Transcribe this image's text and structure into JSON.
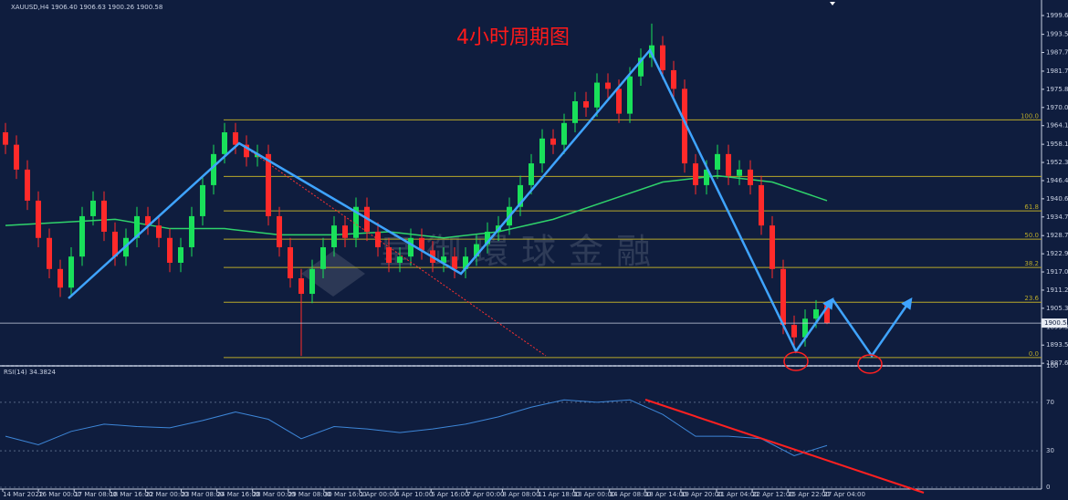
{
  "chart_data": {
    "type": "candlestick",
    "header": "XAUUSD,H4  1906.40 1906.63 1900.26 1900.58",
    "title": "4小时周期图",
    "watermark": "皇御環球金融",
    "up_color": "#19e05a",
    "down_color": "#ff2a2a",
    "open": [
      1962,
      1958,
      1950,
      1940,
      1928,
      1918,
      1912,
      1922,
      1935,
      1940,
      1930,
      1922,
      1928,
      1935,
      1932,
      1928,
      1920,
      1925,
      1935,
      1945,
      1955,
      1962,
      1958,
      1954,
      1955,
      1935,
      1925,
      1915,
      1910,
      1918,
      1925,
      1932,
      1928,
      1938,
      1930,
      1925,
      1920,
      1922,
      1928,
      1924,
      1920,
      1922,
      1918,
      1922,
      1926,
      1930,
      1932,
      1938,
      1945,
      1952,
      1960,
      1958,
      1965,
      1972,
      1970,
      1978,
      1976,
      1968,
      1980,
      1986,
      1990,
      1982,
      1976,
      1952,
      1945,
      1950,
      1955,
      1948,
      1950,
      1945,
      1932,
      1918,
      1900,
      1896,
      1902,
      1906.4
    ],
    "high": [
      1965,
      1961,
      1953,
      1943,
      1931,
      1921,
      1925,
      1938,
      1943,
      1943,
      1933,
      1931,
      1938,
      1938,
      1935,
      1931,
      1928,
      1938,
      1948,
      1958,
      1965,
      1965,
      1961,
      1958,
      1958,
      1938,
      1928,
      1918,
      1921,
      1928,
      1935,
      1935,
      1941,
      1941,
      1933,
      1928,
      1925,
      1931,
      1931,
      1927,
      1925,
      1925,
      1925,
      1929,
      1933,
      1935,
      1941,
      1948,
      1955,
      1963,
      1963,
      1968,
      1975,
      1975,
      1981,
      1981,
      1979,
      1983,
      1989,
      1997,
      1993,
      1985,
      1979,
      1955,
      1953,
      1958,
      1958,
      1953,
      1953,
      1948,
      1935,
      1921,
      1903,
      1905,
      1908,
      1906.63
    ],
    "low": [
      1955,
      1947,
      1937,
      1925,
      1915,
      1909,
      1909,
      1919,
      1932,
      1927,
      1919,
      1919,
      1925,
      1929,
      1925,
      1917,
      1917,
      1922,
      1932,
      1942,
      1952,
      1955,
      1951,
      1951,
      1932,
      1922,
      1912,
      1890,
      1907,
      1915,
      1922,
      1925,
      1925,
      1927,
      1922,
      1917,
      1917,
      1919,
      1921,
      1917,
      1917,
      1915,
      1915,
      1919,
      1923,
      1927,
      1929,
      1935,
      1942,
      1949,
      1955,
      1955,
      1962,
      1967,
      1967,
      1973,
      1965,
      1965,
      1977,
      1983,
      1979,
      1973,
      1949,
      1942,
      1942,
      1947,
      1945,
      1945,
      1942,
      1929,
      1915,
      1897,
      1892,
      1893,
      1899,
      1900.26
    ],
    "close": [
      1958,
      1950,
      1940,
      1928,
      1918,
      1912,
      1922,
      1935,
      1940,
      1930,
      1922,
      1928,
      1935,
      1932,
      1928,
      1920,
      1925,
      1935,
      1945,
      1955,
      1962,
      1958,
      1954,
      1955,
      1935,
      1925,
      1915,
      1910,
      1918,
      1925,
      1932,
      1928,
      1938,
      1930,
      1925,
      1920,
      1922,
      1928,
      1924,
      1920,
      1922,
      1918,
      1922,
      1926,
      1930,
      1932,
      1938,
      1945,
      1952,
      1960,
      1958,
      1965,
      1972,
      1970,
      1978,
      1976,
      1968,
      1980,
      1986,
      1990,
      1982,
      1976,
      1952,
      1945,
      1950,
      1955,
      1948,
      1950,
      1945,
      1932,
      1918,
      1900,
      1896,
      1902,
      1905,
      1900.58
    ],
    "ylim": [
      1887.1,
      2004.6
    ],
    "yticks": [
      {
        "value": 1999.6,
        "label": "1999.60"
      },
      {
        "value": 1993.55,
        "label": "1993.55"
      },
      {
        "value": 1987.7,
        "label": "1987.70"
      },
      {
        "value": 1981.7,
        "label": "1981.70"
      },
      {
        "value": 1975.85,
        "label": "1975.85"
      },
      {
        "value": 1970,
        "label": "1970.00"
      },
      {
        "value": 1964.15,
        "label": "1964.15"
      },
      {
        "value": 1958.15,
        "label": "1958.15"
      },
      {
        "value": 1952.3,
        "label": "1952.30"
      },
      {
        "value": 1946.45,
        "label": "1946.45"
      },
      {
        "value": 1940.6,
        "label": "1940.60"
      },
      {
        "value": 1934.75,
        "label": "1934.75"
      },
      {
        "value": 1928.75,
        "label": "1928.75"
      },
      {
        "value": 1922.9,
        "label": "1922.90"
      },
      {
        "value": 1917.05,
        "label": "1917.05"
      },
      {
        "value": 1911.2,
        "label": "1911.20"
      },
      {
        "value": 1905.35,
        "label": "1905.35"
      },
      {
        "value": 1899.35,
        "label": "1899.35"
      },
      {
        "value": 1893.5,
        "label": "1893.50"
      },
      {
        "value": 1887.65,
        "label": "1887.65"
      }
    ],
    "last_price": {
      "value": 1900.58,
      "label": "1900.58"
    },
    "fib_color": "#b8a82a",
    "fib_levels": [
      {
        "value": 1966,
        "label": "100.0"
      },
      {
        "value": 1947.8,
        "label": null
      },
      {
        "value": 1936.7,
        "label": "61.8"
      },
      {
        "value": 1927.6,
        "label": "50.0"
      },
      {
        "value": 1918.5,
        "label": "38.2"
      },
      {
        "value": 1907.3,
        "label": "23.6"
      },
      {
        "value": 1889.5,
        "label": "0.0"
      }
    ],
    "x_labels": [
      "14 Mar 2022",
      "16 Mar 00:00",
      "17 Mar 08:00",
      "18 Mar 16:00",
      "22 Mar 00:00",
      "23 Mar 08:00",
      "24 Mar 16:00",
      "28 Mar 00:00",
      "29 Mar 08:00",
      "30 Mar 16:00",
      "1 Apr 00:00",
      "4 Apr 10:00",
      "5 Apr 16:00",
      "7 Apr 00:00",
      "8 Apr 08:00",
      "11 Apr 18:00",
      "13 Apr 00:00",
      "14 Apr 08:00",
      "18 Apr 14:00",
      "19 Apr 20:00",
      "21 Apr 04:00",
      "22 Apr 12:00",
      "25 Apr 22:00",
      "27 Apr 04:00"
    ],
    "ma": {
      "color": "#2fd36b",
      "x": [
        0,
        5,
        10,
        15,
        20,
        25,
        30,
        35,
        40,
        45,
        50,
        55,
        60,
        65,
        70,
        75
      ],
      "values": [
        1932,
        1933,
        1934,
        1931,
        1931,
        1929,
        1929,
        1930,
        1928,
        1930,
        1934,
        1940,
        1946,
        1948,
        1946,
        1940
      ]
    },
    "rsi": {
      "title": "RSI(14) 34.3824",
      "color": "#3d86d8",
      "ylim": [
        0,
        100
      ],
      "yticks": [
        100,
        70,
        30,
        0
      ],
      "x": [
        0,
        3,
        6,
        9,
        12,
        15,
        18,
        21,
        24,
        27,
        30,
        33,
        36,
        39,
        42,
        45,
        48,
        51,
        54,
        57,
        60,
        63,
        66,
        69,
        72,
        75
      ],
      "values": [
        42,
        35,
        46,
        52,
        50,
        49,
        55,
        62,
        56,
        40,
        50,
        48,
        45,
        48,
        52,
        58,
        66,
        72,
        70,
        72,
        60,
        42,
        42,
        40,
        26,
        34.38
      ]
    }
  }
}
